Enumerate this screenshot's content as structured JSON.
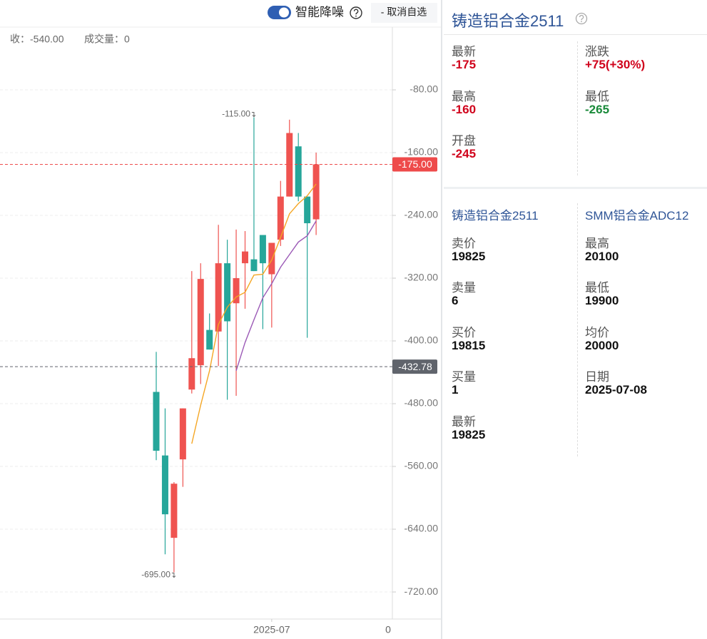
{
  "toolbar": {
    "toggle_label": "智能降噪",
    "button": "- 取消自选"
  },
  "chart_data": {
    "type": "candlestick",
    "info": [
      "收：-540.00",
      "成交量：0"
    ],
    "categories": [
      null,
      null,
      null,
      null,
      null,
      null,
      null,
      null,
      null,
      null,
      null,
      null,
      null,
      "2025-07",
      null,
      null,
      null,
      null,
      null
    ],
    "x_edge_label": "0",
    "candles": {
      "up_color": "#ef5350",
      "down_color": "#26a69a",
      "open": [
        -465,
        -546,
        -651,
        -551,
        -462,
        -431,
        -386,
        -388,
        -301,
        -352,
        -301,
        -296,
        -265,
        -315,
        -271,
        -216,
        -152,
        -216,
        -245
      ],
      "high": [
        -414,
        -486,
        -580,
        -486,
        -311,
        -301,
        -365,
        -252,
        -271,
        -258,
        -260,
        -115,
        -265,
        -275,
        -196,
        -118,
        -135,
        -216,
        -160
      ],
      "low": [
        -552,
        -672,
        -695,
        -586,
        -467,
        -455,
        -411,
        -432,
        -475,
        -470,
        -359,
        -311,
        -385,
        -383,
        -279,
        -216,
        -222,
        -396,
        -265
      ],
      "close": [
        -540,
        -621,
        -582,
        -486,
        -422,
        -321,
        -411,
        -301,
        -375,
        -320,
        -286,
        -311,
        -301,
        -275,
        -216,
        -135,
        -216,
        -250,
        -175
      ]
    },
    "series": [
      {
        "color": "#f5a623",
        "values": [
          null,
          null,
          null,
          null,
          -531,
          -482,
          -438,
          -379,
          -357,
          -344,
          -338,
          -316,
          -315,
          -297,
          -268,
          -238,
          -225,
          -215,
          -200
        ]
      },
      {
        "color": "#9b59b6",
        "values": [
          null,
          null,
          null,
          null,
          null,
          null,
          null,
          null,
          null,
          -438,
          -402,
          -373,
          -345,
          -327,
          -306,
          -290,
          -274,
          -266,
          -247
        ]
      }
    ],
    "ylim": [
      -754.5,
      0
    ],
    "yticks": [
      {
        "value": -80,
        "label": "-80.00"
      },
      {
        "value": -160,
        "label": "-160.00"
      },
      {
        "value": -240,
        "label": "-240.00"
      },
      {
        "value": -320,
        "label": "-320.00"
      },
      {
        "value": -400,
        "label": "-400.00"
      },
      {
        "value": -480,
        "label": "-480.00"
      },
      {
        "value": -560,
        "label": "-560.00"
      },
      {
        "value": -640,
        "label": "-640.00"
      },
      {
        "value": -720,
        "label": "-720.00"
      }
    ],
    "grid": true,
    "price_line": {
      "value": -175,
      "label": "-175.00",
      "color": "#ee4b4b"
    },
    "ref_line": {
      "value": -432.78,
      "label": "-432.78",
      "color": "#60646c"
    },
    "max_note": {
      "value": -115,
      "label": "-115.00"
    },
    "min_note": {
      "value": -695,
      "label": "-695.00"
    }
  },
  "panel": {
    "title": "铸造铝合金2511",
    "quote": [
      {
        "label": "最新",
        "value": "-175",
        "color": "#d0021b"
      },
      {
        "label": "涨跌",
        "value": "+75(+30%)",
        "color": "#d0021b"
      },
      {
        "label": "最高",
        "value": "-160",
        "color": "#d0021b"
      },
      {
        "label": "最低",
        "value": "-265",
        "color": "#1a8a3a"
      },
      {
        "label": "开盘",
        "value": "-245",
        "color": "#d0021b"
      }
    ],
    "left": {
      "title": "铸造铝合金2511",
      "items": [
        {
          "label": "卖价",
          "value": "19825"
        },
        {
          "label": "卖量",
          "value": "6"
        },
        {
          "label": "买价",
          "value": "19815"
        },
        {
          "label": "买量",
          "value": "1"
        },
        {
          "label": "最新",
          "value": "19825"
        }
      ]
    },
    "right": {
      "title": "SMM铝合金ADC12",
      "items": [
        {
          "label": "最高",
          "value": "20100"
        },
        {
          "label": "最低",
          "value": "19900"
        },
        {
          "label": "均价",
          "value": "20000"
        },
        {
          "label": "日期",
          "value": "2025-07-08"
        }
      ]
    }
  }
}
